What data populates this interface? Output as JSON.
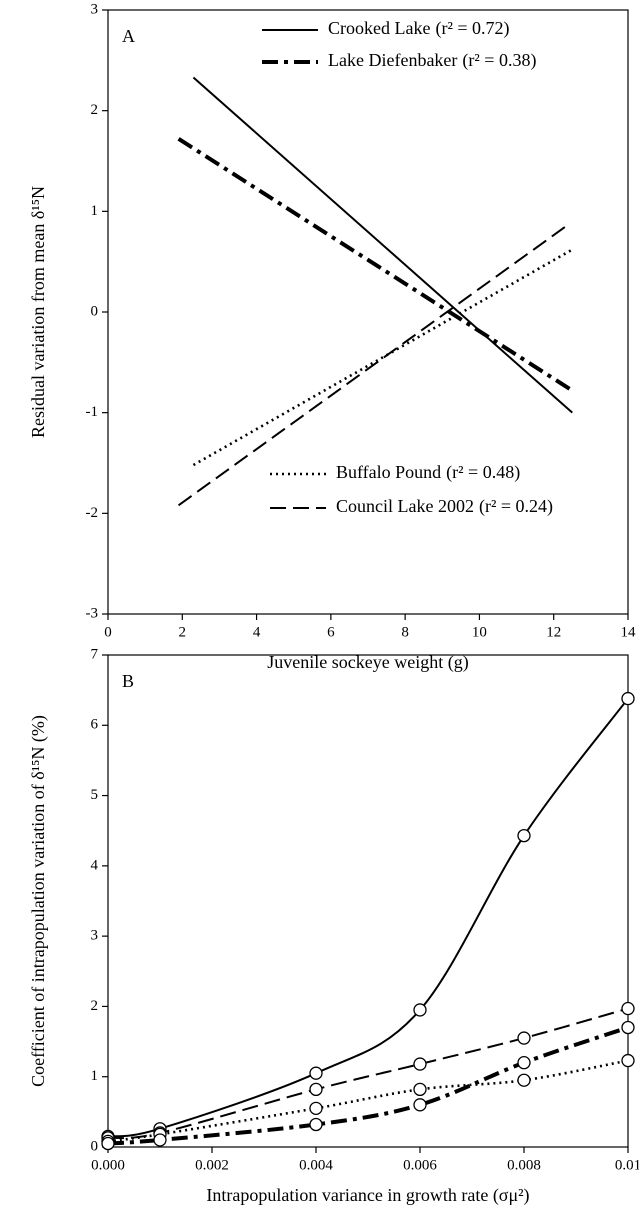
{
  "chart_data": [
    {
      "type": "line",
      "panel_label": "A",
      "x_label": "Juvenile sockeye weight (g)",
      "y_label": "Residual variation from mean δ¹⁵N",
      "xlim": [
        0,
        14
      ],
      "xticks": [
        0,
        2,
        4,
        6,
        8,
        10,
        12,
        14
      ],
      "ylim": [
        -3,
        3
      ],
      "yticks": [
        -3,
        -2,
        -1,
        0,
        1,
        2,
        3
      ],
      "series": [
        {
          "name": "Crooked Lake",
          "fit_label": "(r² = 0.72)",
          "color": "#000000",
          "dash": "solid",
          "legend": "top right",
          "x": [
            2.3,
            12.5
          ],
          "values": [
            2.33,
            -1.0
          ]
        },
        {
          "name": "Lake  Diefenbaker",
          "fit_label": "(r² = 0.38)",
          "color": "#000000",
          "dash": "dash-dot",
          "legend": "top right",
          "x": [
            1.9,
            12.5
          ],
          "values": [
            1.72,
            -0.78
          ]
        },
        {
          "name": "Buffalo Pound",
          "fit_label": "(r² = 0.48)",
          "color": "#000000",
          "dash": "dotted",
          "legend": "bottom right",
          "x": [
            2.3,
            12.5
          ],
          "values": [
            -1.52,
            0.62
          ]
        },
        {
          "name": "Council Lake 2002",
          "fit_label": "(r² = 0.24)",
          "color": "#000000",
          "dash": "dashed",
          "legend": "bottom right",
          "x": [
            1.9,
            12.4
          ],
          "values": [
            -1.92,
            0.87
          ]
        }
      ]
    },
    {
      "type": "line",
      "panel_label": "B",
      "smooth": true,
      "markers": true,
      "x_label": "Intrapopulation variance in growth rate (σμ²)",
      "y_label": "Coefficient of intrapopulation variation of δ¹⁵N (%)",
      "x": [
        0,
        0.001,
        0.004,
        0.006,
        0.008,
        0.01
      ],
      "xlim": [
        0,
        0.01
      ],
      "xticks": [
        {
          "value": 0,
          "label": "0.000"
        },
        {
          "value": 0.002,
          "label": "0.002"
        },
        {
          "value": 0.004,
          "label": "0.004"
        },
        {
          "value": 0.006,
          "label": "0.006"
        },
        {
          "value": 0.008,
          "label": "0.008"
        },
        0.01
      ],
      "ylim": [
        0,
        7
      ],
      "yticks": [
        0,
        1,
        2,
        3,
        4,
        5,
        6,
        7
      ],
      "series": [
        {
          "color": "#000000",
          "dash": "solid",
          "values": [
            0.15,
            0.26,
            1.05,
            1.95,
            4.43,
            6.38
          ]
        },
        {
          "color": "#000000",
          "dash": "dashed",
          "values": [
            0.13,
            0.2,
            0.82,
            1.18,
            1.55,
            1.97
          ]
        },
        {
          "color": "#000000",
          "dash": "dotted",
          "values": [
            0.08,
            0.18,
            0.55,
            0.82,
            0.95,
            1.23
          ]
        },
        {
          "color": "#000000",
          "dash": "dash-dot",
          "values": [
            0.05,
            0.1,
            0.32,
            0.6,
            1.2,
            1.7
          ]
        }
      ]
    }
  ]
}
